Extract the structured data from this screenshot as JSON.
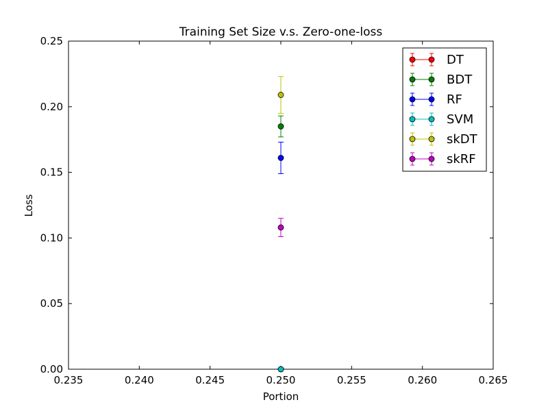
{
  "chart_data": {
    "type": "scatter",
    "title": "Training Set Size v.s. Zero-one-loss",
    "xlabel": "Portion",
    "ylabel": "Loss",
    "xlim": [
      0.235,
      0.265
    ],
    "ylim": [
      0.0,
      0.25
    ],
    "xticks": [
      0.235,
      0.24,
      0.245,
      0.25,
      0.255,
      0.26,
      0.265
    ],
    "xtick_labels": [
      "0.235",
      "0.240",
      "0.245",
      "0.250",
      "0.255",
      "0.260",
      "0.265"
    ],
    "yticks": [
      0.0,
      0.05,
      0.1,
      0.15,
      0.2,
      0.25
    ],
    "ytick_labels": [
      "0.00",
      "0.05",
      "0.10",
      "0.15",
      "0.20",
      "0.25"
    ],
    "legend_position": "top-right",
    "series": [
      {
        "name": "DT",
        "color": "#ff0000",
        "x": [
          0.25
        ],
        "y": [
          0.0
        ],
        "err": [
          0.0
        ]
      },
      {
        "name": "BDT",
        "color": "#008000",
        "x": [
          0.25
        ],
        "y": [
          0.185
        ],
        "err": [
          0.008
        ]
      },
      {
        "name": "RF",
        "color": "#0000ff",
        "x": [
          0.25
        ],
        "y": [
          0.161
        ],
        "err": [
          0.012
        ]
      },
      {
        "name": "SVM",
        "color": "#00bfbf",
        "x": [
          0.25
        ],
        "y": [
          0.0
        ],
        "err": [
          0.0
        ]
      },
      {
        "name": "skDT",
        "color": "#bfbf00",
        "x": [
          0.25
        ],
        "y": [
          0.209
        ],
        "err": [
          0.014
        ]
      },
      {
        "name": "skRF",
        "color": "#bf00bf",
        "x": [
          0.25
        ],
        "y": [
          0.108
        ],
        "err": [
          0.007
        ]
      }
    ]
  }
}
